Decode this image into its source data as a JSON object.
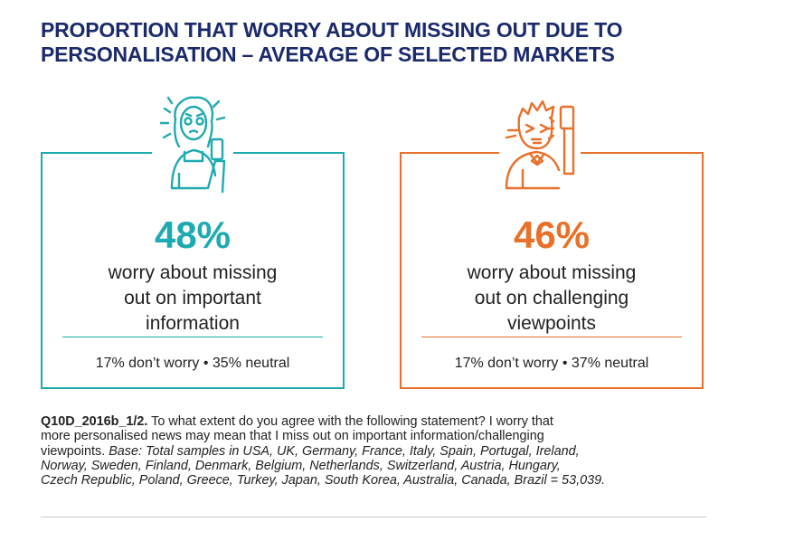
{
  "title": {
    "line1": "PROPORTION THAT WORRY ABOUT MISSING OUT DUE TO",
    "line2": "PERSONALISATION – AVERAGE OF SELECTED MARKETS"
  },
  "colors": {
    "teal": "#1eaab0",
    "orange": "#e8702a",
    "title": "#1b2a6b"
  },
  "cards": [
    {
      "icon": "worried-woman-icon",
      "percent": "48%",
      "desc_lines": [
        "worry about missing",
        "out on important",
        "information"
      ],
      "sub": "17% don’t worry • 35% neutral"
    },
    {
      "icon": "man-with-phone-icon",
      "percent": "46%",
      "desc_lines": [
        "worry about missing",
        "out on challenging",
        "viewpoints"
      ],
      "sub": "17% don’t worry • 37% neutral"
    }
  ],
  "chart_data": {
    "type": "table",
    "title": "PROPORTION THAT WORRY ABOUT MISSING OUT DUE TO PERSONALISATION – AVERAGE OF SELECTED MARKETS",
    "rows": [
      {
        "label": "worry about missing out on important information",
        "worry": 48,
        "dont_worry": 17,
        "neutral": 35
      },
      {
        "label": "worry about missing out on challenging viewpoints",
        "worry": 46,
        "dont_worry": 17,
        "neutral": 37
      }
    ]
  },
  "note": {
    "qid": "Q10D_2016b_1/2.",
    "line1_rest": " To what extent do you agree with the following statement? I worry that",
    "line2": "more personalised news may mean that I miss out on important information/challenging",
    "line3_plain": "viewpoints. ",
    "line3_italic": "Base: Total samples in USA, UK, Germany, France, Italy, Spain, Portugal, Ireland,",
    "line4_italic": "Norway, Sweden, Finland, Denmark, Belgium, Netherlands, Switzerland, Austria, Hungary,",
    "line5_italic": "Czech Republic, Poland, Greece, Turkey, Japan, South Korea, Australia, Canada, Brazil = 53,039."
  }
}
